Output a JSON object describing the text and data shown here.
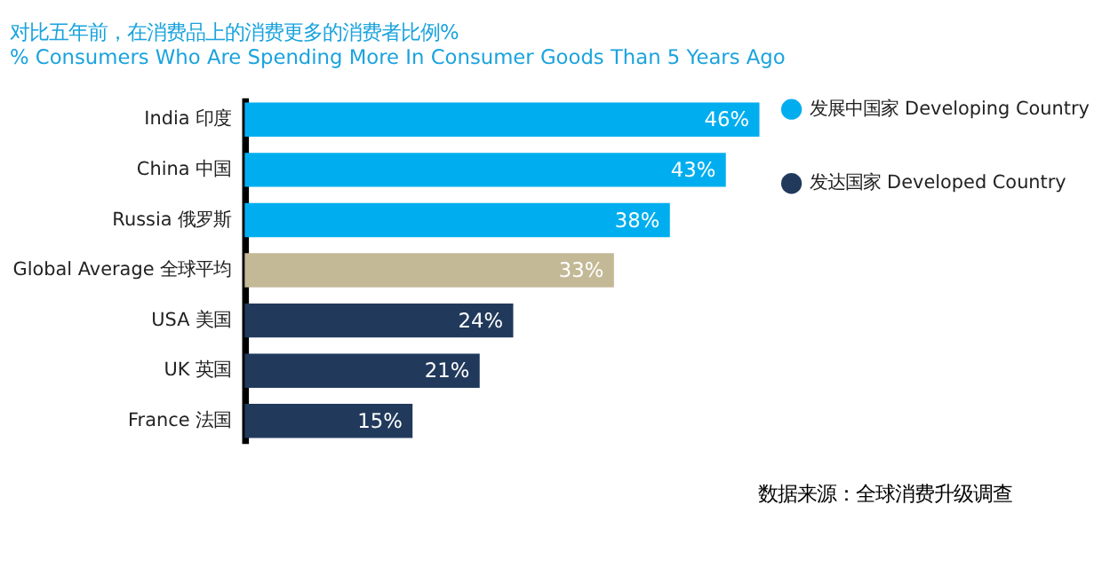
{
  "chart_data": {
    "type": "bar",
    "orientation": "horizontal",
    "title": "对比五年前，在消费品上的消费更多的消费者比例%",
    "subtitle": "% Consumers Who Are Spending More In Consumer Goods Than 5 Years Ago",
    "categories": [
      "India 印度",
      "China 中国",
      "Russia 俄罗斯",
      "Global Average 全球平均",
      "USA 美国",
      "UK 英国",
      "France 法国"
    ],
    "series": [
      {
        "name": "发展中国家 Developing Country",
        "color": "#00aeef",
        "values": [
          46,
          43,
          38,
          null,
          null,
          null,
          null
        ],
        "value_labels": [
          "46%",
          "43%",
          "38%",
          null,
          null,
          null,
          null
        ]
      },
      {
        "color": "#c4b996",
        "values": [
          null,
          null,
          null,
          33,
          null,
          null,
          null
        ],
        "value_labels": [
          null,
          null,
          null,
          "33%",
          null,
          null,
          null
        ]
      },
      {
        "name": "发达国家 Developed Country",
        "color": "#213a5c",
        "values": [
          null,
          null,
          null,
          null,
          24,
          21,
          15
        ],
        "value_labels": [
          null,
          null,
          null,
          null,
          "24%",
          "21%",
          "15%"
        ]
      }
    ],
    "legend": "right",
    "annotations": [
      "数据来源：全球消费升级调查"
    ]
  }
}
